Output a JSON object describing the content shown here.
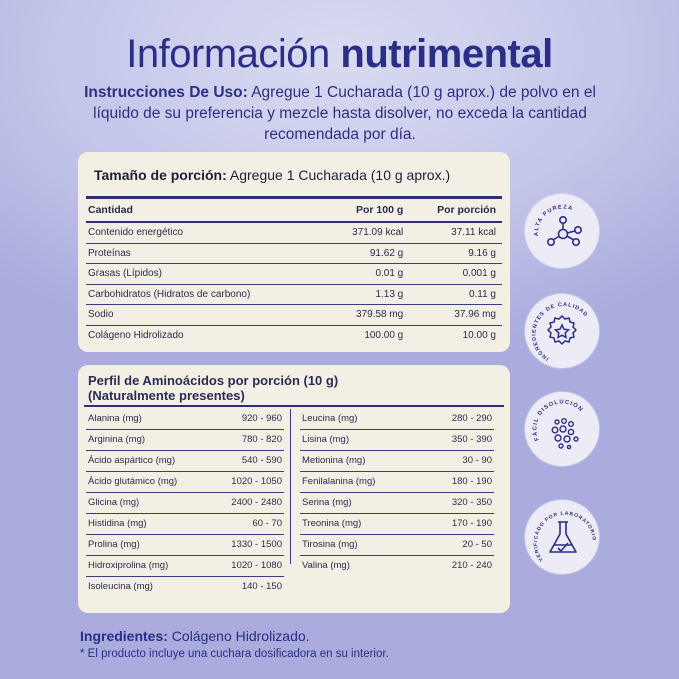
{
  "title": {
    "light": "Información",
    "bold": "nutrimental"
  },
  "instructions": {
    "label": "Instrucciones De Uso:",
    "text": " Agregue 1 Cucharada (10 g aprox.) de polvo en el líquido de su preferencia y mezcle hasta disolver, no exceda la cantidad recomendada por día."
  },
  "nutrition": {
    "serving_label": "Tamaño de porción:",
    "serving_value": " Agregue 1 Cucharada (10 g aprox.)",
    "headers": [
      "Cantidad",
      "Por 100 g",
      "Por porción"
    ],
    "rows": [
      [
        "Contenido energético",
        "371.09 kcal",
        "37.11 kcal"
      ],
      [
        "Proteínas",
        "91.62 g",
        "9.16 g"
      ],
      [
        "Grasas (Lípidos)",
        "0.01 g",
        "0.001 g"
      ],
      [
        "Carbohidratos (Hidratos de carbono)",
        "1.13 g",
        "0.11 g"
      ],
      [
        "Sodio",
        "379.58 mg",
        "37.96 mg"
      ],
      [
        "Colágeno Hidrolizado",
        "100.00 g",
        "10.00 g"
      ]
    ]
  },
  "amino": {
    "title_line1": "Perfil de Aminoácidos por porción (10 g)",
    "title_line2": "(Naturalmente presentes)",
    "left": [
      [
        "Alanina (mg)",
        "920 - 960"
      ],
      [
        "Arginina (mg)",
        "780 - 820"
      ],
      [
        "Ácido aspártico (mg)",
        "540 - 590"
      ],
      [
        "Ácido glutámico (mg)",
        "1020 - 1050"
      ],
      [
        "Glicina (mg)",
        "2400 - 2480"
      ],
      [
        "Histidina (mg)",
        "60 - 70"
      ],
      [
        "Prolina (mg)",
        "1330 - 1500"
      ],
      [
        "Hidroxiprolina (mg)",
        "1020 - 1080"
      ],
      [
        "Isoleucina (mg)",
        "140 - 150"
      ]
    ],
    "right": [
      [
        "Leucina (mg)",
        "280 - 290"
      ],
      [
        "Lisina (mg)",
        "350 - 390"
      ],
      [
        "Metionina (mg)",
        "30 - 90"
      ],
      [
        "Fenilalanina (mg)",
        "180 - 190"
      ],
      [
        "Serina (mg)",
        "320 - 350"
      ],
      [
        "Treonina (mg)",
        "170 - 190"
      ],
      [
        "Tirosina (mg)",
        "20 - 50"
      ],
      [
        "Valina (mg)",
        "210 - 240"
      ]
    ]
  },
  "badges": [
    {
      "text": "ALTA PUREZA",
      "icon": "molecule-icon"
    },
    {
      "text": "INGREDIENTES DE CALIDAD",
      "icon": "quality-star-icon"
    },
    {
      "text": "FÁCIL DISOLUCIÓN",
      "icon": "bubbles-icon"
    },
    {
      "text": "VERIFICADO POR LABORATORIO",
      "icon": "flask-icon"
    }
  ],
  "ingredients": {
    "label": "Ingredientes:",
    "text": " Colágeno Hidrolizado."
  },
  "note": "* El producto incluye una cuchara dosificadora en su interior.",
  "colors": {
    "navy": "#2b2e86",
    "card": "#f4efe5",
    "background": "#aeb0de"
  }
}
